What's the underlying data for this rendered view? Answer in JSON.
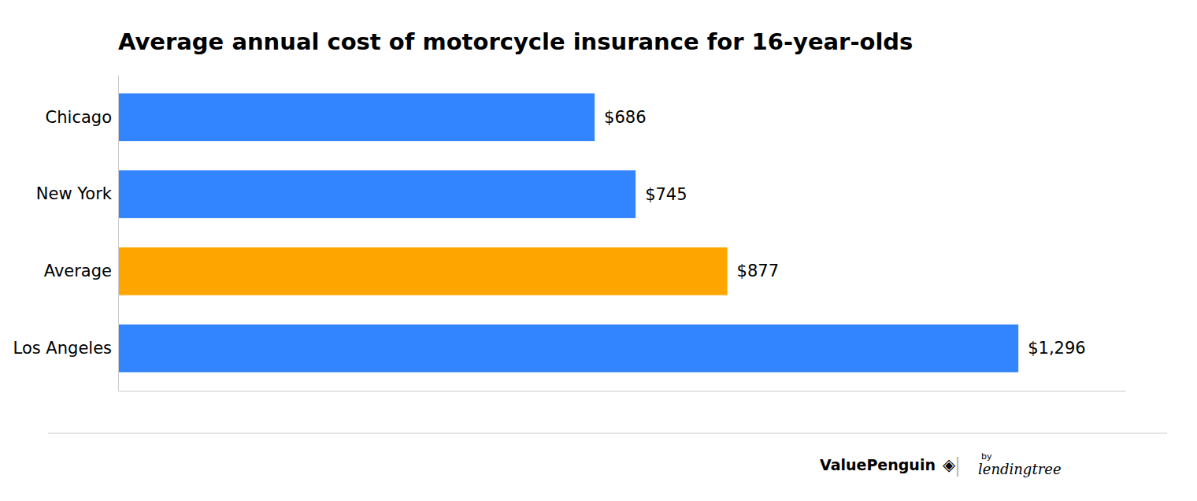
{
  "chart_data": {
    "type": "bar",
    "orientation": "horizontal",
    "title": "Average annual cost of motorcycle insurance for 16-year-olds",
    "categories": [
      "Los Angeles",
      "Average",
      "New York",
      "Chicago"
    ],
    "values": [
      1296,
      877,
      745,
      686
    ],
    "value_labels": [
      "$1,296",
      "$877",
      "$745",
      "$686"
    ],
    "colors": [
      "#3385FF",
      "#FFA500",
      "#3385FF",
      "#3385FF"
    ],
    "xlim": [
      0,
      1450
    ],
    "grid": false,
    "data_labels": true,
    "tick_labels": "y",
    "annotations": [
      "ValuePenguin",
      "◈",
      "|",
      "by",
      "lendingtree"
    ]
  }
}
